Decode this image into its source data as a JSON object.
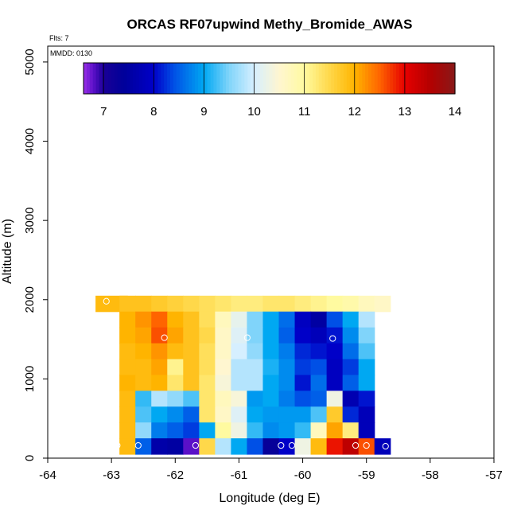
{
  "chart_data": {
    "type": "heatmap",
    "title": "ORCAS RF07upwind Methy_Bromide_AWAS",
    "annotations": {
      "flights": "Flts: 7",
      "mmdd": "MMDD: 0130"
    },
    "xlabel": "Longitude (deg E)",
    "ylabel": "Altitude (m)",
    "xlim": [
      -64,
      -57
    ],
    "ylim": [
      0,
      5200
    ],
    "xticks": [
      -64,
      -63,
      -62,
      -61,
      -60,
      -59,
      -58,
      -57
    ],
    "xtick_labels": [
      "-64",
      "-63",
      "-62",
      "-61",
      "-60",
      "-59",
      "-58",
      "-57"
    ],
    "yticks": [
      0,
      1000,
      2000,
      3000,
      4000,
      5000
    ],
    "ytick_labels": [
      "0",
      "1000",
      "2000",
      "3000",
      "4000",
      "5000"
    ],
    "colorbar": {
      "vmin": 6.6,
      "vmax": 14,
      "ticks": [
        7,
        8,
        9,
        10,
        11,
        12,
        13,
        14
      ],
      "tick_labels": [
        "7",
        "8",
        "9",
        "10",
        "11",
        "12",
        "13",
        "14"
      ],
      "colormap": [
        [
          6.6,
          "#9a30e8"
        ],
        [
          6.8,
          "#5a10c8"
        ],
        [
          7.0,
          "#1a0096"
        ],
        [
          7.4,
          "#00009a"
        ],
        [
          8.0,
          "#0000c8"
        ],
        [
          8.4,
          "#0050e6"
        ],
        [
          9.0,
          "#00a8f2"
        ],
        [
          9.5,
          "#80d4fa"
        ],
        [
          10.0,
          "#d6efff"
        ],
        [
          10.5,
          "#fff6d0"
        ],
        [
          11.0,
          "#fffaa0"
        ],
        [
          11.5,
          "#ffd84a"
        ],
        [
          12.0,
          "#ffb400"
        ],
        [
          12.5,
          "#ff6400"
        ],
        [
          13.0,
          "#e60000"
        ],
        [
          13.5,
          "#b40000"
        ],
        [
          14.0,
          "#881818"
        ]
      ]
    },
    "cell_size": {
      "dlon": 0.25,
      "dalt": 100
    },
    "cells": [
      {
        "lon": -63.0,
        "alt": 1950,
        "v": 11.9,
        "w": 2.0
      },
      {
        "lon": -62.75,
        "alt": 1950,
        "v": 11.8
      },
      {
        "lon": -62.5,
        "alt": 1950,
        "v": 11.8
      },
      {
        "lon": -62.25,
        "alt": 1950,
        "v": 11.7
      },
      {
        "lon": -62.0,
        "alt": 1950,
        "v": 11.6
      },
      {
        "lon": -61.75,
        "alt": 1950,
        "v": 11.5
      },
      {
        "lon": -61.5,
        "alt": 1950,
        "v": 11.4
      },
      {
        "lon": -61.25,
        "alt": 1950,
        "v": 11.3
      },
      {
        "lon": -61.0,
        "alt": 1950,
        "v": 11.2
      },
      {
        "lon": -60.75,
        "alt": 1950,
        "v": 11.2
      },
      {
        "lon": -60.5,
        "alt": 1950,
        "v": 11.3
      },
      {
        "lon": -60.25,
        "alt": 1950,
        "v": 11.3
      },
      {
        "lon": -60.0,
        "alt": 1950,
        "v": 11.2
      },
      {
        "lon": -59.75,
        "alt": 1950,
        "v": 11.1
      },
      {
        "lon": -59.5,
        "alt": 1950,
        "v": 11.0
      },
      {
        "lon": -59.25,
        "alt": 1950,
        "v": 10.9
      },
      {
        "lon": -59.0,
        "alt": 1950,
        "v": 10.7
      },
      {
        "lon": -58.75,
        "alt": 1950,
        "v": 10.6
      },
      {
        "lon": -62.75,
        "alt": 1750,
        "v": 12.0
      },
      {
        "lon": -62.5,
        "alt": 1750,
        "v": 12.2
      },
      {
        "lon": -62.25,
        "alt": 1750,
        "v": 12.5
      },
      {
        "lon": -62.0,
        "alt": 1750,
        "v": 12.0
      },
      {
        "lon": -61.75,
        "alt": 1750,
        "v": 11.8
      },
      {
        "lon": -61.5,
        "alt": 1750,
        "v": 11.4
      },
      {
        "lon": -61.25,
        "alt": 1750,
        "v": 10.7
      },
      {
        "lon": -61.0,
        "alt": 1750,
        "v": 10.2
      },
      {
        "lon": -60.75,
        "alt": 1750,
        "v": 9.5
      },
      {
        "lon": -60.5,
        "alt": 1750,
        "v": 9.0
      },
      {
        "lon": -60.25,
        "alt": 1750,
        "v": 8.6
      },
      {
        "lon": -60.0,
        "alt": 1750,
        "v": 7.9
      },
      {
        "lon": -59.75,
        "alt": 1750,
        "v": 7.5
      },
      {
        "lon": -59.5,
        "alt": 1750,
        "v": 8.4
      },
      {
        "lon": -59.25,
        "alt": 1750,
        "v": 9.0
      },
      {
        "lon": -59.0,
        "alt": 1750,
        "v": 9.8
      },
      {
        "lon": -62.75,
        "alt": 1550,
        "v": 12.0
      },
      {
        "lon": -62.5,
        "alt": 1550,
        "v": 12.1
      },
      {
        "lon": -62.25,
        "alt": 1550,
        "v": 12.6
      },
      {
        "lon": -62.0,
        "alt": 1550,
        "v": 12.1
      },
      {
        "lon": -61.75,
        "alt": 1550,
        "v": 11.8
      },
      {
        "lon": -61.5,
        "alt": 1550,
        "v": 11.5
      },
      {
        "lon": -61.25,
        "alt": 1550,
        "v": 10.6
      },
      {
        "lon": -61.0,
        "alt": 1550,
        "v": 10.1
      },
      {
        "lon": -60.75,
        "alt": 1550,
        "v": 9.5
      },
      {
        "lon": -60.5,
        "alt": 1550,
        "v": 9.0
      },
      {
        "lon": -60.25,
        "alt": 1550,
        "v": 8.5
      },
      {
        "lon": -60.0,
        "alt": 1550,
        "v": 8.0
      },
      {
        "lon": -59.75,
        "alt": 1550,
        "v": 7.8
      },
      {
        "lon": -59.5,
        "alt": 1550,
        "v": 8.1
      },
      {
        "lon": -59.25,
        "alt": 1550,
        "v": 8.8
      },
      {
        "lon": -59.0,
        "alt": 1550,
        "v": 9.5
      },
      {
        "lon": -62.75,
        "alt": 1350,
        "v": 11.9
      },
      {
        "lon": -62.5,
        "alt": 1350,
        "v": 12.0
      },
      {
        "lon": -62.25,
        "alt": 1350,
        "v": 12.2
      },
      {
        "lon": -62.0,
        "alt": 1350,
        "v": 11.9
      },
      {
        "lon": -61.75,
        "alt": 1350,
        "v": 11.8
      },
      {
        "lon": -61.5,
        "alt": 1350,
        "v": 11.4
      },
      {
        "lon": -61.25,
        "alt": 1350,
        "v": 10.6
      },
      {
        "lon": -61.0,
        "alt": 1350,
        "v": 10.0
      },
      {
        "lon": -60.75,
        "alt": 1350,
        "v": 9.6
      },
      {
        "lon": -60.5,
        "alt": 1350,
        "v": 9.0
      },
      {
        "lon": -60.25,
        "alt": 1350,
        "v": 8.7
      },
      {
        "lon": -60.0,
        "alt": 1350,
        "v": 8.2
      },
      {
        "lon": -59.75,
        "alt": 1350,
        "v": 8.1
      },
      {
        "lon": -59.5,
        "alt": 1350,
        "v": 8.0
      },
      {
        "lon": -59.25,
        "alt": 1350,
        "v": 8.6
      },
      {
        "lon": -59.0,
        "alt": 1350,
        "v": 9.3
      },
      {
        "lon": -62.75,
        "alt": 1150,
        "v": 11.9
      },
      {
        "lon": -62.5,
        "alt": 1150,
        "v": 11.9
      },
      {
        "lon": -62.25,
        "alt": 1150,
        "v": 12.1
      },
      {
        "lon": -62.0,
        "alt": 1150,
        "v": 11.1
      },
      {
        "lon": -61.75,
        "alt": 1150,
        "v": 11.8
      },
      {
        "lon": -61.5,
        "alt": 1150,
        "v": 11.4
      },
      {
        "lon": -61.25,
        "alt": 1150,
        "v": 10.5
      },
      {
        "lon": -61.0,
        "alt": 1150,
        "v": 9.8
      },
      {
        "lon": -60.75,
        "alt": 1150,
        "v": 9.8
      },
      {
        "lon": -60.5,
        "alt": 1150,
        "v": 9.1
      },
      {
        "lon": -60.25,
        "alt": 1150,
        "v": 8.8
      },
      {
        "lon": -60.0,
        "alt": 1150,
        "v": 8.3
      },
      {
        "lon": -59.75,
        "alt": 1150,
        "v": 8.4
      },
      {
        "lon": -59.5,
        "alt": 1150,
        "v": 7.9
      },
      {
        "lon": -59.25,
        "alt": 1150,
        "v": 8.3
      },
      {
        "lon": -59.0,
        "alt": 1150,
        "v": 9.0
      },
      {
        "lon": -62.75,
        "alt": 950,
        "v": 12.0
      },
      {
        "lon": -62.5,
        "alt": 950,
        "v": 11.9
      },
      {
        "lon": -62.25,
        "alt": 950,
        "v": 12.0
      },
      {
        "lon": -62.0,
        "alt": 950,
        "v": 11.3
      },
      {
        "lon": -61.75,
        "alt": 950,
        "v": 11.8
      },
      {
        "lon": -61.5,
        "alt": 950,
        "v": 11.3
      },
      {
        "lon": -61.25,
        "alt": 950,
        "v": 10.4
      },
      {
        "lon": -61.0,
        "alt": 950,
        "v": 9.8
      },
      {
        "lon": -60.75,
        "alt": 950,
        "v": 9.8
      },
      {
        "lon": -60.5,
        "alt": 950,
        "v": 9.0
      },
      {
        "lon": -60.25,
        "alt": 950,
        "v": 8.8
      },
      {
        "lon": -60.0,
        "alt": 950,
        "v": 8.1
      },
      {
        "lon": -59.75,
        "alt": 950,
        "v": 8.6
      },
      {
        "lon": -59.5,
        "alt": 950,
        "v": 7.9
      },
      {
        "lon": -59.25,
        "alt": 950,
        "v": 8.5
      },
      {
        "lon": -59.0,
        "alt": 950,
        "v": 9.0
      },
      {
        "lon": -62.75,
        "alt": 750,
        "v": 11.9
      },
      {
        "lon": -62.5,
        "alt": 750,
        "v": 9.2
      },
      {
        "lon": -62.25,
        "alt": 750,
        "v": 9.8
      },
      {
        "lon": -62.0,
        "alt": 750,
        "v": 9.6
      },
      {
        "lon": -61.75,
        "alt": 750,
        "v": 9.3
      },
      {
        "lon": -61.5,
        "alt": 750,
        "v": 11.3
      },
      {
        "lon": -61.25,
        "alt": 750,
        "v": 10.7
      },
      {
        "lon": -61.0,
        "alt": 750,
        "v": 10.4
      },
      {
        "lon": -60.75,
        "alt": 750,
        "v": 8.9
      },
      {
        "lon": -60.5,
        "alt": 750,
        "v": 9.0
      },
      {
        "lon": -60.25,
        "alt": 750,
        "v": 8.7
      },
      {
        "lon": -60.0,
        "alt": 750,
        "v": 8.4
      },
      {
        "lon": -59.75,
        "alt": 750,
        "v": 8.5
      },
      {
        "lon": -59.5,
        "alt": 750,
        "v": 10.3
      },
      {
        "lon": -59.25,
        "alt": 750,
        "v": 7.7
      },
      {
        "lon": -59.0,
        "alt": 750,
        "v": 8.1
      },
      {
        "lon": -62.75,
        "alt": 550,
        "v": 11.9
      },
      {
        "lon": -62.5,
        "alt": 550,
        "v": 9.3
      },
      {
        "lon": -62.25,
        "alt": 550,
        "v": 9.0
      },
      {
        "lon": -62.0,
        "alt": 550,
        "v": 8.8
      },
      {
        "lon": -61.75,
        "alt": 550,
        "v": 8.5
      },
      {
        "lon": -61.5,
        "alt": 550,
        "v": 11.3
      },
      {
        "lon": -61.25,
        "alt": 550,
        "v": 10.6
      },
      {
        "lon": -61.0,
        "alt": 550,
        "v": 10.1
      },
      {
        "lon": -60.75,
        "alt": 550,
        "v": 9.0
      },
      {
        "lon": -60.5,
        "alt": 550,
        "v": 8.9
      },
      {
        "lon": -60.25,
        "alt": 550,
        "v": 8.9
      },
      {
        "lon": -60.0,
        "alt": 550,
        "v": 8.9
      },
      {
        "lon": -59.75,
        "alt": 550,
        "v": 9.3
      },
      {
        "lon": -59.5,
        "alt": 550,
        "v": 11.7
      },
      {
        "lon": -59.25,
        "alt": 550,
        "v": 8.2
      },
      {
        "lon": -59.0,
        "alt": 550,
        "v": 7.8
      },
      {
        "lon": -62.75,
        "alt": 350,
        "v": 11.9
      },
      {
        "lon": -62.5,
        "alt": 350,
        "v": 9.6
      },
      {
        "lon": -62.25,
        "alt": 350,
        "v": 8.7
      },
      {
        "lon": -62.0,
        "alt": 350,
        "v": 8.5
      },
      {
        "lon": -61.75,
        "alt": 350,
        "v": 8.3
      },
      {
        "lon": -61.5,
        "alt": 350,
        "v": 9.0
      },
      {
        "lon": -61.25,
        "alt": 350,
        "v": 11.0
      },
      {
        "lon": -61.0,
        "alt": 350,
        "v": 10.3
      },
      {
        "lon": -60.75,
        "alt": 350,
        "v": 9.2
      },
      {
        "lon": -60.5,
        "alt": 350,
        "v": 8.8
      },
      {
        "lon": -60.25,
        "alt": 350,
        "v": 8.9
      },
      {
        "lon": -60.0,
        "alt": 350,
        "v": 9.2
      },
      {
        "lon": -59.75,
        "alt": 350,
        "v": 10.7
      },
      {
        "lon": -59.5,
        "alt": 350,
        "v": 12.1
      },
      {
        "lon": -59.25,
        "alt": 350,
        "v": 11.2
      },
      {
        "lon": -59.0,
        "alt": 350,
        "v": 7.8
      },
      {
        "lon": -62.75,
        "alt": 150,
        "v": 11.9
      },
      {
        "lon": -62.5,
        "alt": 150,
        "v": 8.5
      },
      {
        "lon": -62.25,
        "alt": 150,
        "v": 7.6
      },
      {
        "lon": -62.0,
        "alt": 150,
        "v": 7.5
      },
      {
        "lon": -61.75,
        "alt": 150,
        "v": 6.8
      },
      {
        "lon": -61.5,
        "alt": 150,
        "v": 11.5
      },
      {
        "lon": -61.25,
        "alt": 150,
        "v": 9.8
      },
      {
        "lon": -61.0,
        "alt": 150,
        "v": 9.0
      },
      {
        "lon": -60.75,
        "alt": 150,
        "v": 8.4
      },
      {
        "lon": -60.5,
        "alt": 150,
        "v": 7.3
      },
      {
        "lon": -60.25,
        "alt": 150,
        "v": 8.0
      },
      {
        "lon": -60.0,
        "alt": 150,
        "v": 10.3
      },
      {
        "lon": -59.75,
        "alt": 150,
        "v": 11.9
      },
      {
        "lon": -59.5,
        "alt": 150,
        "v": 12.9
      },
      {
        "lon": -59.25,
        "alt": 150,
        "v": 13.4
      },
      {
        "lon": -59.0,
        "alt": 150,
        "v": 12.6
      },
      {
        "lon": -58.75,
        "alt": 150,
        "v": 7.8
      }
    ],
    "sample_points": [
      {
        "lon": -63.08,
        "alt": 1980
      },
      {
        "lon": -62.17,
        "alt": 1520
      },
      {
        "lon": -60.87,
        "alt": 1520
      },
      {
        "lon": -59.53,
        "alt": 1510
      },
      {
        "lon": -62.97,
        "alt": 160
      },
      {
        "lon": -62.91,
        "alt": 160
      },
      {
        "lon": -62.58,
        "alt": 160
      },
      {
        "lon": -61.68,
        "alt": 160
      },
      {
        "lon": -60.34,
        "alt": 160
      },
      {
        "lon": -60.17,
        "alt": 160
      },
      {
        "lon": -59.17,
        "alt": 160
      },
      {
        "lon": -59.0,
        "alt": 160
      },
      {
        "lon": -58.7,
        "alt": 150
      }
    ]
  }
}
